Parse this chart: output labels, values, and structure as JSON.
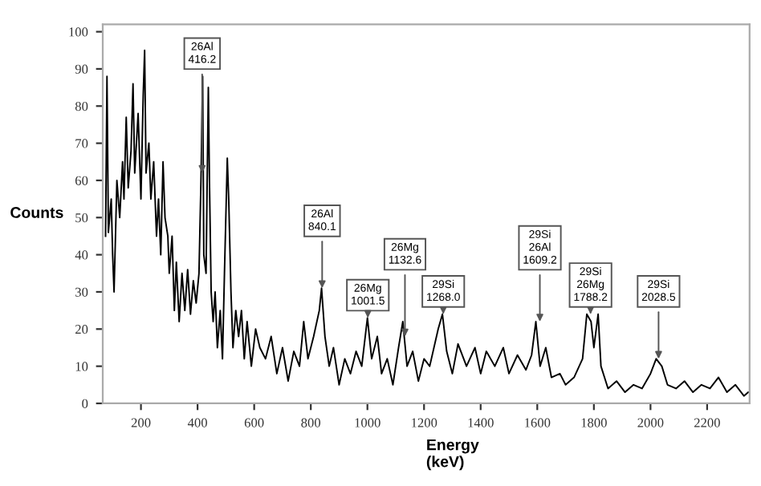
{
  "chart_data": {
    "type": "line",
    "xlabel": "Energy\n(keV)",
    "ylabel": "Counts",
    "color": "#000000",
    "xlim": [
      65,
      2350
    ],
    "ylim": [
      0,
      102
    ],
    "xticks": [
      200,
      400,
      600,
      800,
      1000,
      1200,
      1400,
      1600,
      1800,
      2000,
      2200
    ],
    "yticks": [
      0,
      10,
      20,
      30,
      40,
      50,
      60,
      70,
      80,
      90,
      100
    ],
    "grid": false,
    "legend": false,
    "marker": "none",
    "line_style": "solid",
    "x": [
      75,
      80,
      85,
      95,
      100,
      105,
      115,
      125,
      135,
      140,
      148,
      155,
      165,
      172,
      178,
      190,
      200,
      208,
      213,
      218,
      228,
      235,
      245,
      255,
      262,
      270,
      278,
      285,
      295,
      300,
      310,
      318,
      325,
      335,
      345,
      355,
      365,
      375,
      385,
      395,
      405,
      412,
      418,
      422,
      430,
      438,
      442,
      448,
      455,
      462,
      470,
      480,
      488,
      495,
      505,
      510,
      518,
      525,
      535,
      545,
      555,
      565,
      575,
      590,
      605,
      620,
      640,
      660,
      680,
      700,
      720,
      740,
      760,
      775,
      790,
      810,
      830,
      838,
      850,
      865,
      880,
      900,
      920,
      940,
      960,
      980,
      1000,
      1015,
      1035,
      1050,
      1070,
      1090,
      1110,
      1125,
      1140,
      1160,
      1180,
      1200,
      1220,
      1250,
      1265,
      1280,
      1300,
      1320,
      1350,
      1380,
      1400,
      1420,
      1450,
      1480,
      1500,
      1530,
      1560,
      1580,
      1595,
      1610,
      1630,
      1650,
      1680,
      1700,
      1730,
      1760,
      1775,
      1790,
      1800,
      1815,
      1825,
      1850,
      1880,
      1910,
      1940,
      1970,
      2000,
      2020,
      2040,
      2060,
      2090,
      2120,
      2150,
      2180,
      2210,
      2240,
      2270,
      2300,
      2330,
      2345
    ],
    "values": [
      45,
      88,
      46,
      55,
      40,
      30,
      60,
      50,
      65,
      55,
      77,
      58,
      68,
      86,
      62,
      78,
      55,
      83,
      95,
      62,
      70,
      55,
      65,
      45,
      55,
      40,
      65,
      50,
      45,
      35,
      45,
      25,
      38,
      22,
      35,
      25,
      36,
      24,
      33,
      27,
      35,
      60,
      88,
      40,
      35,
      85,
      60,
      30,
      22,
      30,
      15,
      25,
      12,
      35,
      66,
      55,
      30,
      15,
      25,
      18,
      25,
      12,
      22,
      10,
      20,
      15,
      12,
      18,
      8,
      15,
      6,
      14,
      10,
      22,
      12,
      18,
      25,
      31,
      18,
      10,
      15,
      5,
      12,
      8,
      14,
      10,
      23,
      12,
      18,
      8,
      12,
      5,
      15,
      22,
      10,
      14,
      6,
      12,
      10,
      20,
      24,
      14,
      8,
      16,
      10,
      15,
      8,
      14,
      10,
      15,
      8,
      13,
      9,
      13,
      22,
      10,
      15,
      7,
      8,
      5,
      7,
      12,
      24,
      22,
      15,
      24,
      10,
      4,
      6,
      3,
      5,
      4,
      8,
      12,
      10,
      5,
      4,
      6,
      3,
      5,
      4,
      7,
      3,
      5,
      2,
      3
    ],
    "annotations": [
      {
        "text": "26Al\n416.2",
        "x": 416.2,
        "y": 62
      },
      {
        "text": "26Al\n840.1",
        "x": 840.1,
        "y": 31
      },
      {
        "text": "26Mg\n1001.5",
        "x": 1001.5,
        "y": 23
      },
      {
        "text": "26Mg\n1132.6",
        "x": 1132.6,
        "y": 18
      },
      {
        "text": "29Si\n1268.0",
        "x": 1268.0,
        "y": 24
      },
      {
        "text": "29Si\n26Al\n1609.2",
        "x": 1609.2,
        "y": 22
      },
      {
        "text": "29Si\n26Mg\n1788.2",
        "x": 1788.2,
        "y": 24
      },
      {
        "text": "29Si\n2028.5",
        "x": 2028.5,
        "y": 12
      }
    ]
  }
}
